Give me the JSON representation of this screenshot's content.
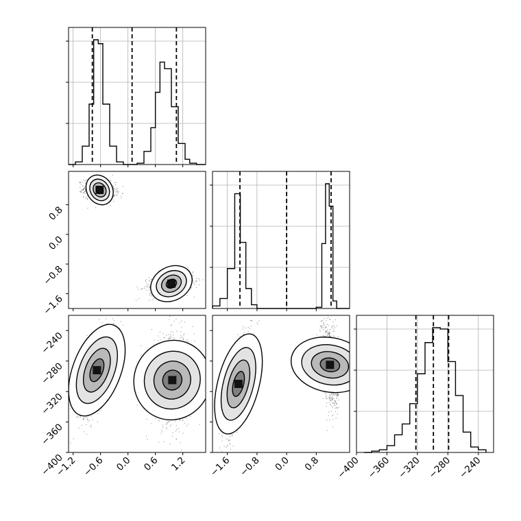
{
  "chart_data": {
    "type": "corner",
    "title": "",
    "grid": true,
    "color": "#000000",
    "parameters": [
      {
        "index": 0,
        "label": "",
        "range": [
          -1.3,
          1.7
        ],
        "ticks": [
          "-1.2",
          "-0.6",
          "0.0",
          "0.6",
          "1.2"
        ],
        "tick_values": [
          -1.2,
          -0.6,
          0.0,
          0.6,
          1.2
        ],
        "quantiles": [
          -0.78,
          0.09,
          1.06
        ],
        "histogram": {
          "bin_edges": [
            -1.3,
            -1.15,
            -1.0,
            -0.85,
            -0.75,
            -0.65,
            -0.55,
            -0.4,
            -0.25,
            -0.1,
            0.0,
            0.1,
            0.2,
            0.35,
            0.5,
            0.6,
            0.7,
            0.8,
            0.95,
            1.1,
            1.25,
            1.35,
            1.5,
            1.7
          ],
          "counts": [
            0.0,
            0.02,
            0.14,
            0.46,
            0.95,
            0.92,
            0.46,
            0.14,
            0.02,
            0.0,
            0.0,
            0.0,
            0.01,
            0.1,
            0.28,
            0.55,
            0.78,
            0.73,
            0.44,
            0.16,
            0.04,
            0.01,
            0.0
          ]
        }
      },
      {
        "index": 1,
        "label": "",
        "range": [
          -2.0,
          1.7
        ],
        "ticks": [
          "-1.6",
          "-0.8",
          "0.0",
          "0.8"
        ],
        "tick_values": [
          -1.6,
          -0.8,
          0.0,
          0.8
        ],
        "quantiles": [
          -1.26,
          0.0,
          1.2
        ],
        "histogram": {
          "bin_edges": [
            -2.0,
            -1.8,
            -1.6,
            -1.4,
            -1.25,
            -1.1,
            -0.95,
            -0.8,
            -0.6,
            -0.2,
            0.2,
            0.6,
            0.8,
            0.95,
            1.05,
            1.15,
            1.25,
            1.35,
            1.5,
            1.7
          ],
          "counts": [
            0.02,
            0.08,
            0.32,
            0.92,
            0.53,
            0.16,
            0.03,
            0.0,
            0.0,
            0.0,
            0.0,
            0.0,
            0.01,
            0.52,
            1.0,
            0.82,
            0.06,
            0.0,
            0.0
          ]
        }
      },
      {
        "index": 2,
        "label": "",
        "range": [
          -400,
          -220
        ],
        "ticks": [
          "-400",
          "-360",
          "-320",
          "-280",
          "-240"
        ],
        "tick_values": [
          -400,
          -360,
          -320,
          -280,
          -240
        ],
        "quantiles": [
          -322,
          -299,
          -279
        ],
        "histogram": {
          "bin_edges": [
            -390,
            -380,
            -370,
            -360,
            -350,
            -340,
            -330,
            -320,
            -310,
            -300,
            -290,
            -280,
            -270,
            -260,
            -250,
            -240,
            -230
          ],
          "counts": [
            0.0,
            0.01,
            0.02,
            0.05,
            0.13,
            0.21,
            0.36,
            0.58,
            0.81,
            0.92,
            0.91,
            0.67,
            0.42,
            0.15,
            0.04,
            0.02
          ]
        }
      }
    ],
    "panels_2d": [
      {
        "x_param": 0,
        "y_param": 1,
        "clusters": [
          {
            "mx": -0.62,
            "my": 1.2,
            "sx": 0.17,
            "sy": 0.13,
            "rho": -0.2,
            "n": 900
          },
          {
            "mx": 0.95,
            "my": -1.33,
            "sx": 0.24,
            "sy": 0.16,
            "rho": 0.25,
            "n": 900
          }
        ]
      },
      {
        "x_param": 0,
        "y_param": 2,
        "clusters": [
          {
            "mx": -0.68,
            "my": -292,
            "sx": 0.19,
            "sy": 30,
            "rho": 0.6,
            "n": 900
          },
          {
            "mx": 0.97,
            "my": -305,
            "sx": 0.23,
            "sy": 30,
            "rho": 0.05,
            "n": 900
          }
        ]
      },
      {
        "x_param": 1,
        "y_param": 2,
        "clusters": [
          {
            "mx": -1.3,
            "my": -310,
            "sx": 0.17,
            "sy": 32,
            "rho": 0.72,
            "n": 900
          },
          {
            "mx": 1.17,
            "my": -285,
            "sx": 0.11,
            "sy": 28,
            "rho": -0.35,
            "n": 900
          }
        ]
      }
    ]
  }
}
